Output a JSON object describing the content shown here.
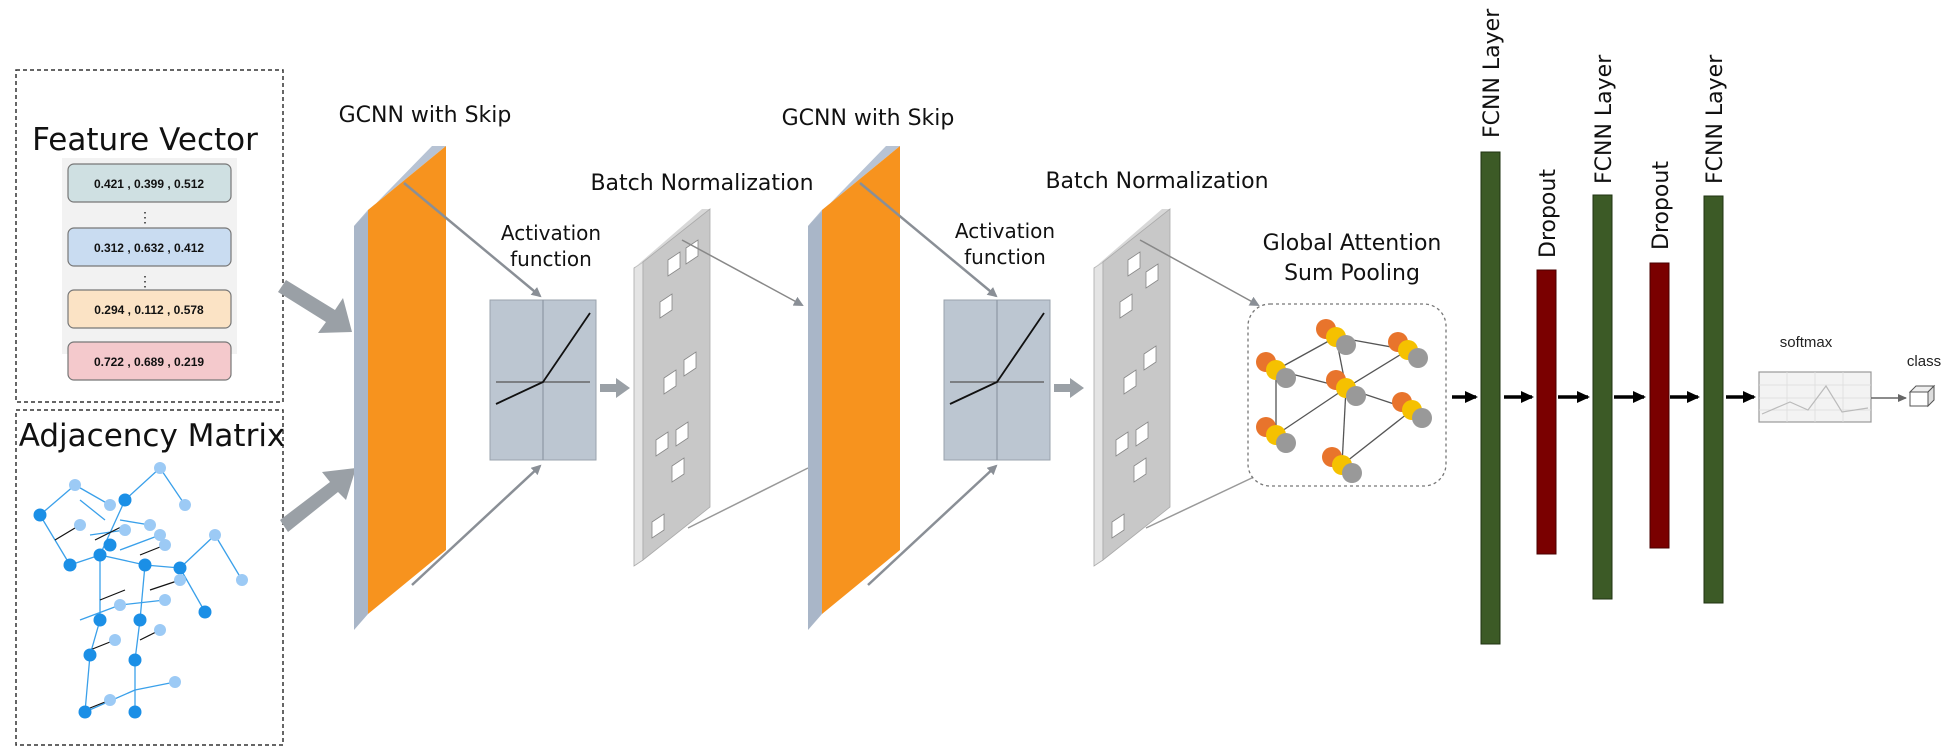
{
  "input": {
    "feature_title": "Feature Vector",
    "vectors": [
      {
        "text": "0.421 ,  0.399 ,  0.512",
        "fill": "#cfe0e2"
      },
      {
        "text": "0.312 ,  0.632 ,  0.412",
        "fill": "#c9dcf1"
      },
      {
        "text": "0.294 ,  0.112 ,  0.578",
        "fill": "#fbe3c5"
      },
      {
        "text": "0.722 ,  0.689 ,  0.219",
        "fill": "#f4c9cc"
      }
    ],
    "ellipsis": "⋮",
    "adjacency_title": "Adjacency Matrix"
  },
  "layers": {
    "gcnn1": "GCNN with Skip",
    "gcnn2": "GCNN with Skip",
    "act1_line1": "Activation",
    "act1_line2": "function",
    "act2_line1": "Activation",
    "act2_line2": "function",
    "bn1": "Batch Normalization",
    "bn2": "Batch Normalization",
    "pool_line1": "Global Attention",
    "pool_line2": "Sum Pooling",
    "fcnn1": "FCNN Layer",
    "dropout1": "Dropout",
    "fcnn2": "FCNN Layer",
    "dropout2": "Dropout",
    "fcnn3": "FCNN Layer",
    "softmax": "softmax",
    "class": "class"
  },
  "colors": {
    "gcnn": "#f7931e",
    "fcnn": "#3c5a26",
    "dropout": "#7a0000",
    "activation_box": "#bcc6d1",
    "bn_panel": "#c8c8c8",
    "adjacency_node": "#1b8fe6",
    "adjacency_node_light": "#9ccaf5"
  },
  "icons": {
    "adjacency_graph": "molecule-graph-icon",
    "pooling_graph": "attention-graph-icon",
    "class_cube": "cube-icon"
  }
}
